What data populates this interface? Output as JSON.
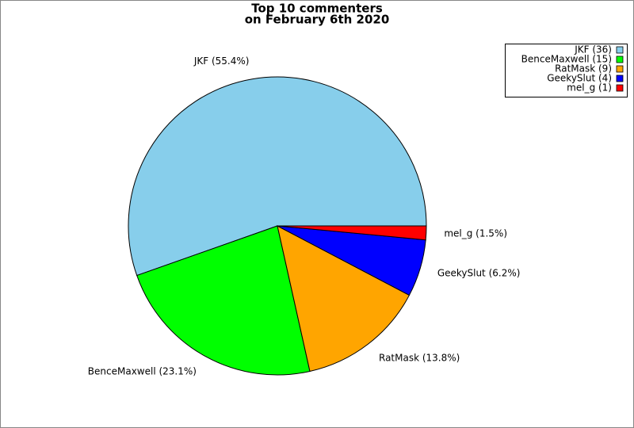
{
  "chart_data": {
    "type": "pie",
    "title": "Top 10 commenters",
    "subtitle": "on February 6th 2020",
    "categories": [
      "JKF",
      "BenceMaxwell",
      "RatMask",
      "GeekySlut",
      "mel_g"
    ],
    "values": [
      55.4,
      23.1,
      13.8,
      6.2,
      1.5
    ],
    "value_labels": [
      "JKF (55.4%)",
      "BenceMaxwell (23.1%)",
      "RatMask (13.8%)",
      "GeekySlut (6.2%)",
      "mel_g (1.5%)"
    ],
    "legend_labels": [
      "JKF (36)",
      "BenceMaxwell (15)",
      "RatMask (9)",
      "GeekySlut (4)",
      "mel_g (1)"
    ],
    "colors": [
      "#87ceeb",
      "#00ff00",
      "#ffa500",
      "#0000ff",
      "#ff0000"
    ],
    "legend_position": "upper right"
  }
}
